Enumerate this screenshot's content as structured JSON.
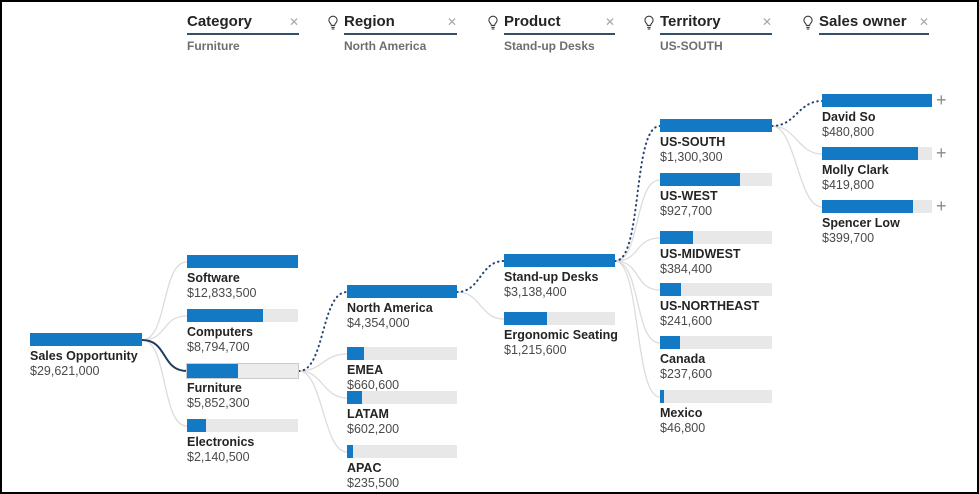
{
  "headers": [
    {
      "label": "Category",
      "selected": "Furniture",
      "ai_suggested": false
    },
    {
      "label": "Region",
      "selected": "North America",
      "ai_suggested": true
    },
    {
      "label": "Product",
      "selected": "Stand-up Desks",
      "ai_suggested": true
    },
    {
      "label": "Territory",
      "selected": "US-SOUTH",
      "ai_suggested": true
    },
    {
      "label": "Sales owner",
      "selected": "",
      "ai_suggested": true
    }
  ],
  "tree": {
    "root": {
      "label": "Sales Opportunity",
      "value": "$29,621,000",
      "amount": 29621000
    },
    "levels": [
      {
        "field": "Category",
        "nodes": [
          {
            "label": "Software",
            "value": "$12,833,500",
            "amount": 12833500,
            "selected": false
          },
          {
            "label": "Computers",
            "value": "$8,794,700",
            "amount": 8794700,
            "selected": false
          },
          {
            "label": "Furniture",
            "value": "$5,852,300",
            "amount": 5852300,
            "selected": true
          },
          {
            "label": "Electronics",
            "value": "$2,140,500",
            "amount": 2140500,
            "selected": false
          }
        ]
      },
      {
        "field": "Region",
        "nodes": [
          {
            "label": "North America",
            "value": "$4,354,000",
            "amount": 4354000,
            "selected": true
          },
          {
            "label": "EMEA",
            "value": "$660,600",
            "amount": 660600,
            "selected": false
          },
          {
            "label": "LATAM",
            "value": "$602,200",
            "amount": 602200,
            "selected": false
          },
          {
            "label": "APAC",
            "value": "$235,500",
            "amount": 235500,
            "selected": false
          }
        ]
      },
      {
        "field": "Product",
        "nodes": [
          {
            "label": "Stand-up Desks",
            "value": "$3,138,400",
            "amount": 3138400,
            "selected": true
          },
          {
            "label": "Ergonomic Seating",
            "value": "$1,215,600",
            "amount": 1215600,
            "selected": false
          }
        ]
      },
      {
        "field": "Territory",
        "nodes": [
          {
            "label": "US-SOUTH",
            "value": "$1,300,300",
            "amount": 1300300,
            "selected": true
          },
          {
            "label": "US-WEST",
            "value": "$927,700",
            "amount": 927700,
            "selected": false
          },
          {
            "label": "US-MIDWEST",
            "value": "$384,400",
            "amount": 384400,
            "selected": false
          },
          {
            "label": "US-NORTHEAST",
            "value": "$241,600",
            "amount": 241600,
            "selected": false
          },
          {
            "label": "Canada",
            "value": "$237,600",
            "amount": 237600,
            "selected": false
          },
          {
            "label": "Mexico",
            "value": "$46,800",
            "amount": 46800,
            "selected": false
          }
        ]
      },
      {
        "field": "Sales owner",
        "nodes": [
          {
            "label": "David So",
            "value": "$480,800",
            "amount": 480800,
            "selected": false
          },
          {
            "label": "Molly Clark",
            "value": "$419,800",
            "amount": 419800,
            "selected": false
          },
          {
            "label": "Spencer Low",
            "value": "$399,700",
            "amount": 399700,
            "selected": false
          }
        ]
      }
    ]
  },
  "icons": {
    "close": "✕",
    "plus": "+",
    "ai_bulb": "lightbulb-icon"
  },
  "colors": {
    "bar_fill": "#1379C5",
    "bar_track": "#E8E8E8",
    "connector_gray": "#DCDCDC",
    "selected_path_solid": "#213A5E",
    "ai_path_dotted": "#26436F",
    "header_underline": "#33506B",
    "text_primary": "#252423",
    "text_secondary": "#6E6E6E"
  },
  "chart_data": {
    "type": "bar",
    "title": "Sales Opportunity decomposition tree",
    "root": {
      "label": "Sales Opportunity",
      "value": 29621000
    },
    "levels": [
      {
        "field": "Category",
        "parent": "Sales Opportunity",
        "selected": "Furniture",
        "categories": [
          "Software",
          "Computers",
          "Furniture",
          "Electronics"
        ],
        "values": [
          12833500,
          8794700,
          5852300,
          2140500
        ]
      },
      {
        "field": "Region",
        "parent": "Furniture",
        "selected": "North America",
        "categories": [
          "North America",
          "EMEA",
          "LATAM",
          "APAC"
        ],
        "values": [
          4354000,
          660600,
          602200,
          235500
        ]
      },
      {
        "field": "Product",
        "parent": "North America",
        "selected": "Stand-up Desks",
        "categories": [
          "Stand-up Desks",
          "Ergonomic Seating"
        ],
        "values": [
          3138400,
          1215600
        ]
      },
      {
        "field": "Territory",
        "parent": "Stand-up Desks",
        "selected": "US-SOUTH",
        "categories": [
          "US-SOUTH",
          "US-WEST",
          "US-MIDWEST",
          "US-NORTHEAST",
          "Canada",
          "Mexico"
        ],
        "values": [
          1300300,
          927700,
          384400,
          241600,
          237600,
          46800
        ]
      },
      {
        "field": "Sales owner",
        "parent": "US-SOUTH",
        "selected": null,
        "categories": [
          "David So",
          "Molly Clark",
          "Spencer Low"
        ],
        "values": [
          480800,
          419800,
          399700
        ]
      }
    ],
    "bar_scale": "each level scaled to its own max value",
    "legend_position": "none",
    "grid": false
  }
}
